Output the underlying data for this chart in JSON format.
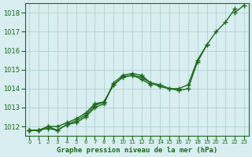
{
  "title": "Graphe pression niveau de la mer (hPa)",
  "bg_color": "#d8eef0",
  "line_color": "#1a6b1a",
  "grid_color": "#aacccc",
  "x_ticks": [
    0,
    1,
    2,
    3,
    4,
    5,
    6,
    7,
    8,
    9,
    10,
    11,
    12,
    13,
    14,
    15,
    16,
    17,
    18,
    19,
    20,
    21,
    22,
    23
  ],
  "y_ticks": [
    1012,
    1013,
    1014,
    1015,
    1016,
    1017,
    1018
  ],
  "ylim": [
    1011.5,
    1018.5
  ],
  "xlim": [
    -0.5,
    23.5
  ],
  "series": [
    [
      1011.8,
      1011.8,
      1011.9,
      1011.8,
      1012.1,
      1012.2,
      1012.5,
      1013.0,
      1013.2,
      1014.3,
      1014.7,
      1014.8,
      1014.7,
      1014.3,
      1014.1,
      1014.0,
      1013.9,
      1014.0,
      1015.4,
      1016.3,
      1017.0,
      1017.5,
      1018.2,
      null
    ],
    [
      1011.8,
      1011.8,
      1012.0,
      1011.8,
      1012.1,
      1012.3,
      1012.6,
      1013.1,
      1013.3,
      1014.2,
      1014.6,
      1014.7,
      1014.6,
      1014.3,
      1014.2,
      1014.0,
      1014.0,
      1014.2,
      1015.5,
      1016.3,
      null,
      null,
      null,
      null
    ],
    [
      1011.8,
      1011.8,
      1012.0,
      1012.0,
      1012.2,
      1012.4,
      1012.7,
      1013.2,
      1013.3,
      1014.2,
      1014.6,
      1014.7,
      1014.5,
      1014.2,
      null,
      null,
      null,
      null,
      null,
      null,
      null,
      null,
      null,
      null
    ],
    [
      1011.8,
      null,
      null,
      null,
      null,
      null,
      null,
      null,
      null,
      null,
      null,
      null,
      null,
      null,
      null,
      null,
      null,
      null,
      null,
      null,
      null,
      null,
      1018.0,
      1018.4
    ]
  ]
}
